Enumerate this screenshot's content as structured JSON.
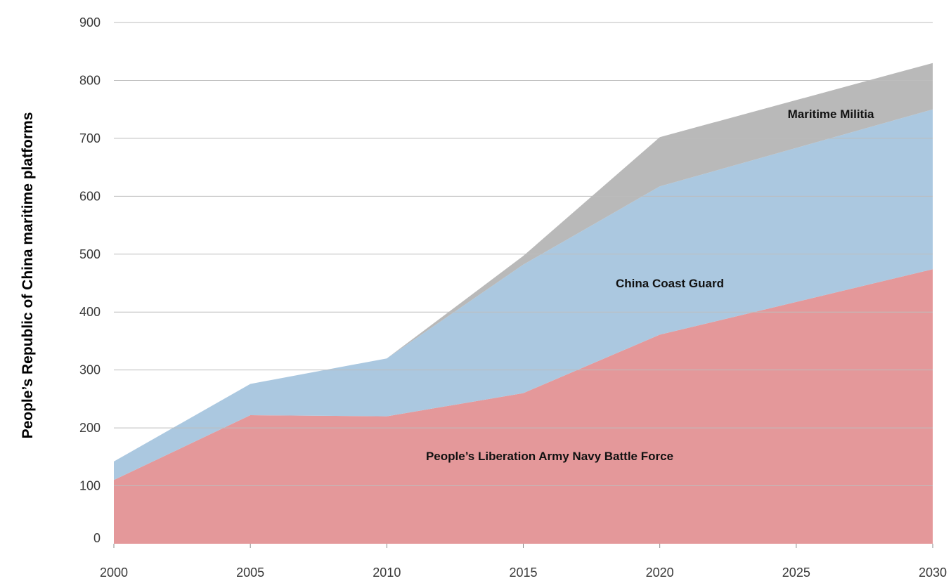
{
  "chart_data": {
    "type": "area",
    "stacked": true,
    "title": "",
    "xlabel": "",
    "ylabel": "People’s Republic of China maritime platforms",
    "x": [
      2000,
      2005,
      2010,
      2015,
      2020,
      2030
    ],
    "x_ticks": [
      "2000",
      "2005",
      "2010",
      "2015",
      "2020",
      "2025",
      "2030"
    ],
    "y_ticks": [
      "0",
      "100",
      "200",
      "300",
      "400",
      "500",
      "600",
      "700",
      "800",
      "900"
    ],
    "xlim": [
      2000,
      2030
    ],
    "ylim": [
      0,
      900
    ],
    "grid": true,
    "legend": "none",
    "series": [
      {
        "name": "People’s Liberation Army Navy Battle Force",
        "color": "#e4989a",
        "values": [
          110,
          222,
          220,
          260,
          361,
          474
        ]
      },
      {
        "name": "China Coast Guard",
        "color": "#abc8e0",
        "values": [
          32,
          54,
          100,
          222,
          256,
          276
        ]
      },
      {
        "name": "Maritime Militia",
        "color": "#b9b9b9",
        "values": [
          0,
          0,
          0,
          15,
          85,
          80
        ]
      }
    ]
  }
}
